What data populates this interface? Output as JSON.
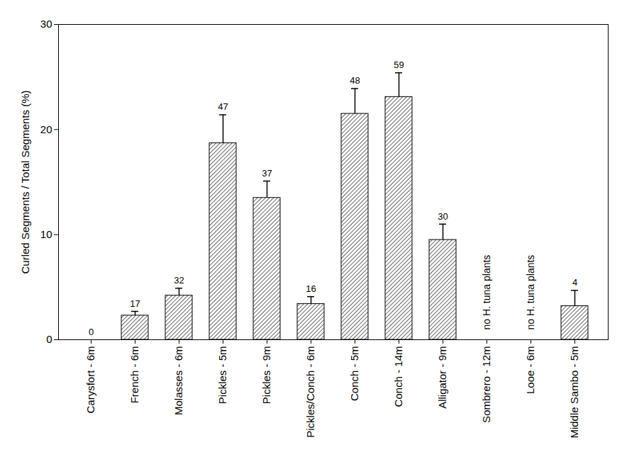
{
  "chart_data": {
    "type": "bar",
    "y_label": "Curled Segments / Total Segments (%)",
    "categories": [
      "Carysfort - 6m",
      "French - 6m",
      "Molasses - 6m",
      "Pickles - 5m",
      "Pickles - 9m",
      "Pickles/Conch - 6m",
      "Conch - 5m",
      "Conch - 14m",
      "Alligator - 9m",
      "Sombrero - 12m",
      "Looe - 6m",
      "Middle Sambo - 5m"
    ],
    "values": [
      0,
      2.3,
      4.2,
      18.7,
      13.5,
      3.4,
      21.5,
      23.1,
      9.5,
      null,
      null,
      3.2
    ],
    "errors": [
      null,
      0.4,
      0.7,
      2.7,
      1.6,
      0.7,
      2.4,
      2.3,
      1.5,
      null,
      null,
      1.5
    ],
    "sample_sizes": [
      0,
      17,
      32,
      47,
      37,
      16,
      48,
      59,
      30,
      null,
      null,
      4
    ],
    "annotations": [
      {
        "category": "Sombrero - 12m",
        "text": "no H. tuna plants"
      },
      {
        "category": "Looe - 6m",
        "text": "no H. tuna plants"
      }
    ],
    "color": "#000000",
    "ylim": [
      0,
      30
    ],
    "yticks": [
      0,
      10,
      20,
      30
    ],
    "grid": false
  }
}
